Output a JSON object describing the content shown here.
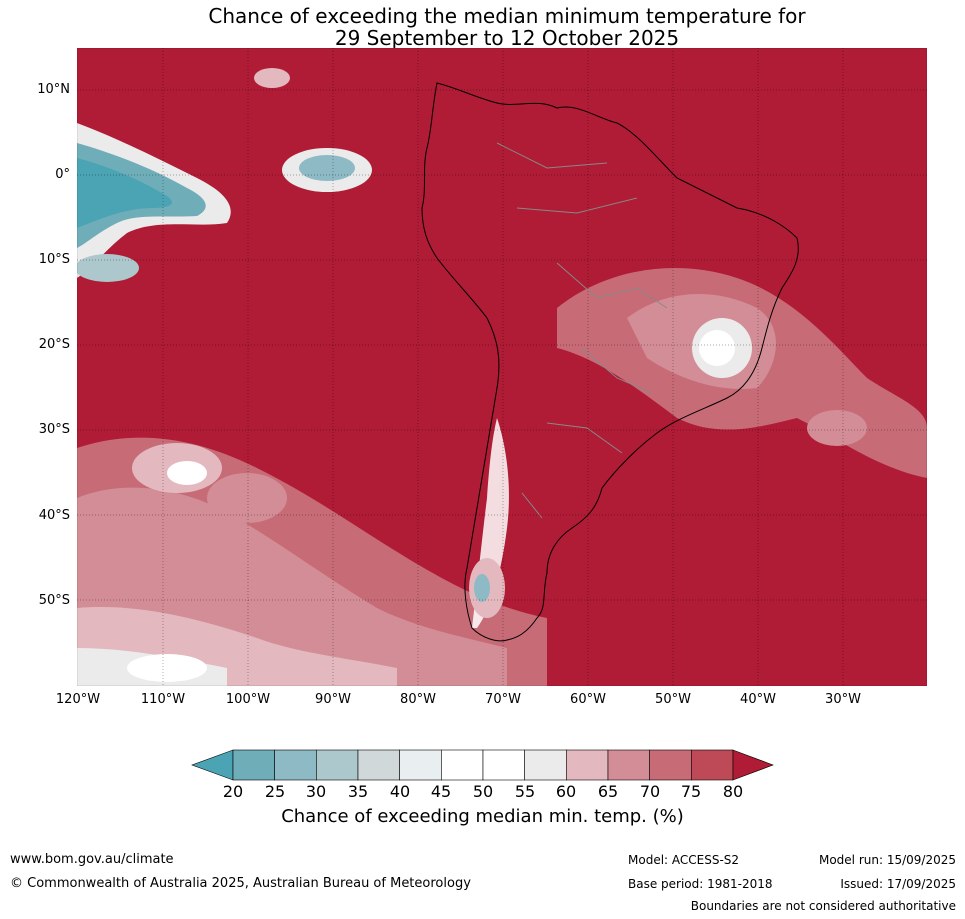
{
  "title": {
    "line1": "Chance of exceeding the median minimum temperature for",
    "line2": "29 September to 12 October 2025"
  },
  "map": {
    "region": "South America",
    "background_color": "#b01b35",
    "lat_labels": [
      "10°N",
      "0°",
      "10°S",
      "20°S",
      "30°S",
      "40°S",
      "50°S"
    ],
    "lon_labels": [
      "120°W",
      "110°W",
      "100°W",
      "90°W",
      "80°W",
      "70°W",
      "60°W",
      "50°W",
      "40°W",
      "30°W"
    ]
  },
  "colorbar": {
    "ticks": [
      "20",
      "25",
      "30",
      "35",
      "40",
      "45",
      "50",
      "55",
      "60",
      "65",
      "70",
      "75",
      "80"
    ],
    "colors": [
      "#4ba4b4",
      "#6fadb9",
      "#8ebac6",
      "#adc8cc",
      "#d1d8da",
      "#e9eef0",
      "#ffffff",
      "#ffffff",
      "#ebebeb",
      "#e3b9bf",
      "#d38d97",
      "#c76b77",
      "#bf4a57",
      "#b01b35"
    ],
    "label": "Chance of exceeding median min. temp. (%)"
  },
  "footer": {
    "website": "www.bom.gov.au/climate",
    "copyright": "© Commonwealth of Australia 2025, Australian Bureau of Meteorology",
    "model": "Model: ACCESS-S2",
    "base_period": "Base period: 1981-2018",
    "model_run": "Model run: 15/09/2025",
    "issued": "Issued: 17/09/2025",
    "disclaimer": "Boundaries are not considered authoritative"
  }
}
